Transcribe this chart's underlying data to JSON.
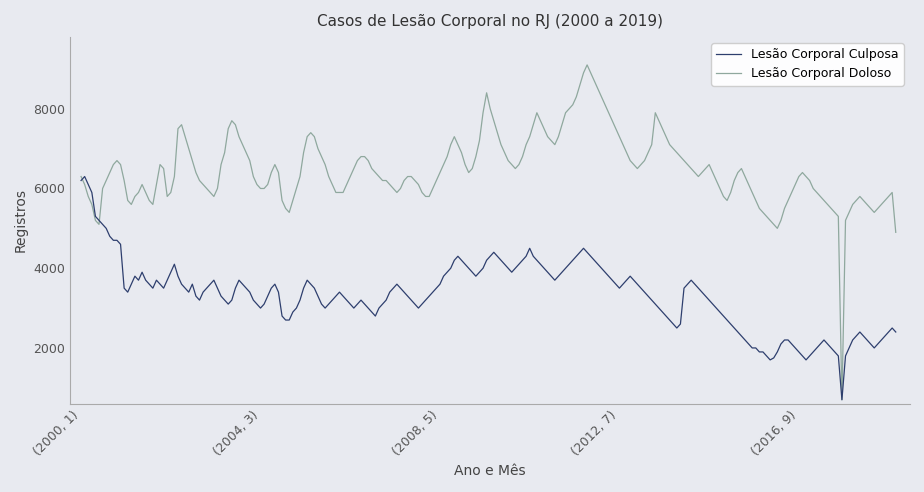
{
  "title": "Casos de Lesão Corporal no RJ (2000 a 2019)",
  "xlabel": "Ano e Mês",
  "ylabel": "Registros",
  "background_color": "#e8eaf0",
  "line_culposa_color": "#2e3f6e",
  "line_doloso_color": "#8fa89e",
  "legend_culposa": "Lesão Corporal Culposa",
  "legend_doloso": "Lesão Corporal Doloso",
  "yticks": [
    2000,
    4000,
    6000,
    8000
  ],
  "ylim": [
    600,
    9800
  ],
  "xtick_labels": [
    "(2000, 1)",
    "(2004, 3)",
    "(2008, 5)",
    "(2012, 7)",
    "(2016, 9)"
  ],
  "xtick_positions": [
    0,
    50,
    100,
    150,
    200
  ],
  "culposa": [
    6200,
    6300,
    6100,
    5900,
    5300,
    5200,
    5100,
    5000,
    4800,
    4700,
    4700,
    4600,
    3500,
    3400,
    3600,
    3800,
    3700,
    3900,
    3700,
    3600,
    3500,
    3700,
    3600,
    3500,
    3700,
    3900,
    4100,
    3800,
    3600,
    3500,
    3400,
    3600,
    3300,
    3200,
    3400,
    3500,
    3600,
    3700,
    3500,
    3300,
    3200,
    3100,
    3200,
    3500,
    3700,
    3600,
    3500,
    3400,
    3200,
    3100,
    3000,
    3100,
    3300,
    3500,
    3600,
    3400,
    2800,
    2700,
    2700,
    2900,
    3000,
    3200,
    3500,
    3700,
    3600,
    3500,
    3300,
    3100,
    3000,
    3100,
    3200,
    3300,
    3400,
    3300,
    3200,
    3100,
    3000,
    3100,
    3200,
    3100,
    3000,
    2900,
    2800,
    3000,
    3100,
    3200,
    3400,
    3500,
    3600,
    3500,
    3400,
    3300,
    3200,
    3100,
    3000,
    3100,
    3200,
    3300,
    3400,
    3500,
    3600,
    3800,
    3900,
    4000,
    4200,
    4300,
    4200,
    4100,
    4000,
    3900,
    3800,
    3900,
    4000,
    4200,
    4300,
    4400,
    4300,
    4200,
    4100,
    4000,
    3900,
    4000,
    4100,
    4200,
    4300,
    4500,
    4300,
    4200,
    4100,
    4000,
    3900,
    3800,
    3700,
    3800,
    3900,
    4000,
    4100,
    4200,
    4300,
    4400,
    4500,
    4400,
    4300,
    4200,
    4100,
    4000,
    3900,
    3800,
    3700,
    3600,
    3500,
    3600,
    3700,
    3800,
    3700,
    3600,
    3500,
    3400,
    3300,
    3200,
    3100,
    3000,
    2900,
    2800,
    2700,
    2600,
    2500,
    2600,
    3500,
    3600,
    3700,
    3600,
    3500,
    3400,
    3300,
    3200,
    3100,
    3000,
    2900,
    2800,
    2700,
    2600,
    2500,
    2400,
    2300,
    2200,
    2100,
    2000,
    2000,
    1900,
    1900,
    1800,
    1700,
    1750,
    1900,
    2100,
    2200,
    2200,
    2100,
    2000,
    1900,
    1800,
    1700,
    1800,
    1900,
    2000,
    2100,
    2200,
    2100,
    2000,
    1900,
    1800,
    700,
    1800,
    2000,
    2200,
    2300,
    2400,
    2300,
    2200,
    2100,
    2000,
    2100,
    2200,
    2300,
    2400,
    2500,
    2400
  ],
  "doloso": [
    6300,
    6100,
    5800,
    5600,
    5200,
    5100,
    6000,
    6200,
    6400,
    6600,
    6700,
    6600,
    6200,
    5700,
    5600,
    5800,
    5900,
    6100,
    5900,
    5700,
    5600,
    6100,
    6600,
    6500,
    5800,
    5900,
    6300,
    7500,
    7600,
    7300,
    7000,
    6700,
    6400,
    6200,
    6100,
    6000,
    5900,
    5800,
    6000,
    6600,
    6900,
    7500,
    7700,
    7600,
    7300,
    7100,
    6900,
    6700,
    6300,
    6100,
    6000,
    6000,
    6100,
    6400,
    6600,
    6400,
    5700,
    5500,
    5400,
    5700,
    6000,
    6300,
    6900,
    7300,
    7400,
    7300,
    7000,
    6800,
    6600,
    6300,
    6100,
    5900,
    5900,
    5900,
    6100,
    6300,
    6500,
    6700,
    6800,
    6800,
    6700,
    6500,
    6400,
    6300,
    6200,
    6200,
    6100,
    6000,
    5900,
    6000,
    6200,
    6300,
    6300,
    6200,
    6100,
    5900,
    5800,
    5800,
    6000,
    6200,
    6400,
    6600,
    6800,
    7100,
    7300,
    7100,
    6900,
    6600,
    6400,
    6500,
    6800,
    7200,
    7900,
    8400,
    8000,
    7700,
    7400,
    7100,
    6900,
    6700,
    6600,
    6500,
    6600,
    6800,
    7100,
    7300,
    7600,
    7900,
    7700,
    7500,
    7300,
    7200,
    7100,
    7300,
    7600,
    7900,
    8000,
    8100,
    8300,
    8600,
    8900,
    9100,
    8900,
    8700,
    8500,
    8300,
    8100,
    7900,
    7700,
    7500,
    7300,
    7100,
    6900,
    6700,
    6600,
    6500,
    6600,
    6700,
    6900,
    7100,
    7900,
    7700,
    7500,
    7300,
    7100,
    7000,
    6900,
    6800,
    6700,
    6600,
    6500,
    6400,
    6300,
    6400,
    6500,
    6600,
    6400,
    6200,
    6000,
    5800,
    5700,
    5900,
    6200,
    6400,
    6500,
    6300,
    6100,
    5900,
    5700,
    5500,
    5400,
    5300,
    5200,
    5100,
    5000,
    5200,
    5500,
    5700,
    5900,
    6100,
    6300,
    6400,
    6300,
    6200,
    6000,
    5900,
    5800,
    5700,
    5600,
    5500,
    5400,
    5300,
    700,
    5200,
    5400,
    5600,
    5700,
    5800,
    5700,
    5600,
    5500,
    5400,
    5500,
    5600,
    5700,
    5800,
    5900,
    4900
  ]
}
